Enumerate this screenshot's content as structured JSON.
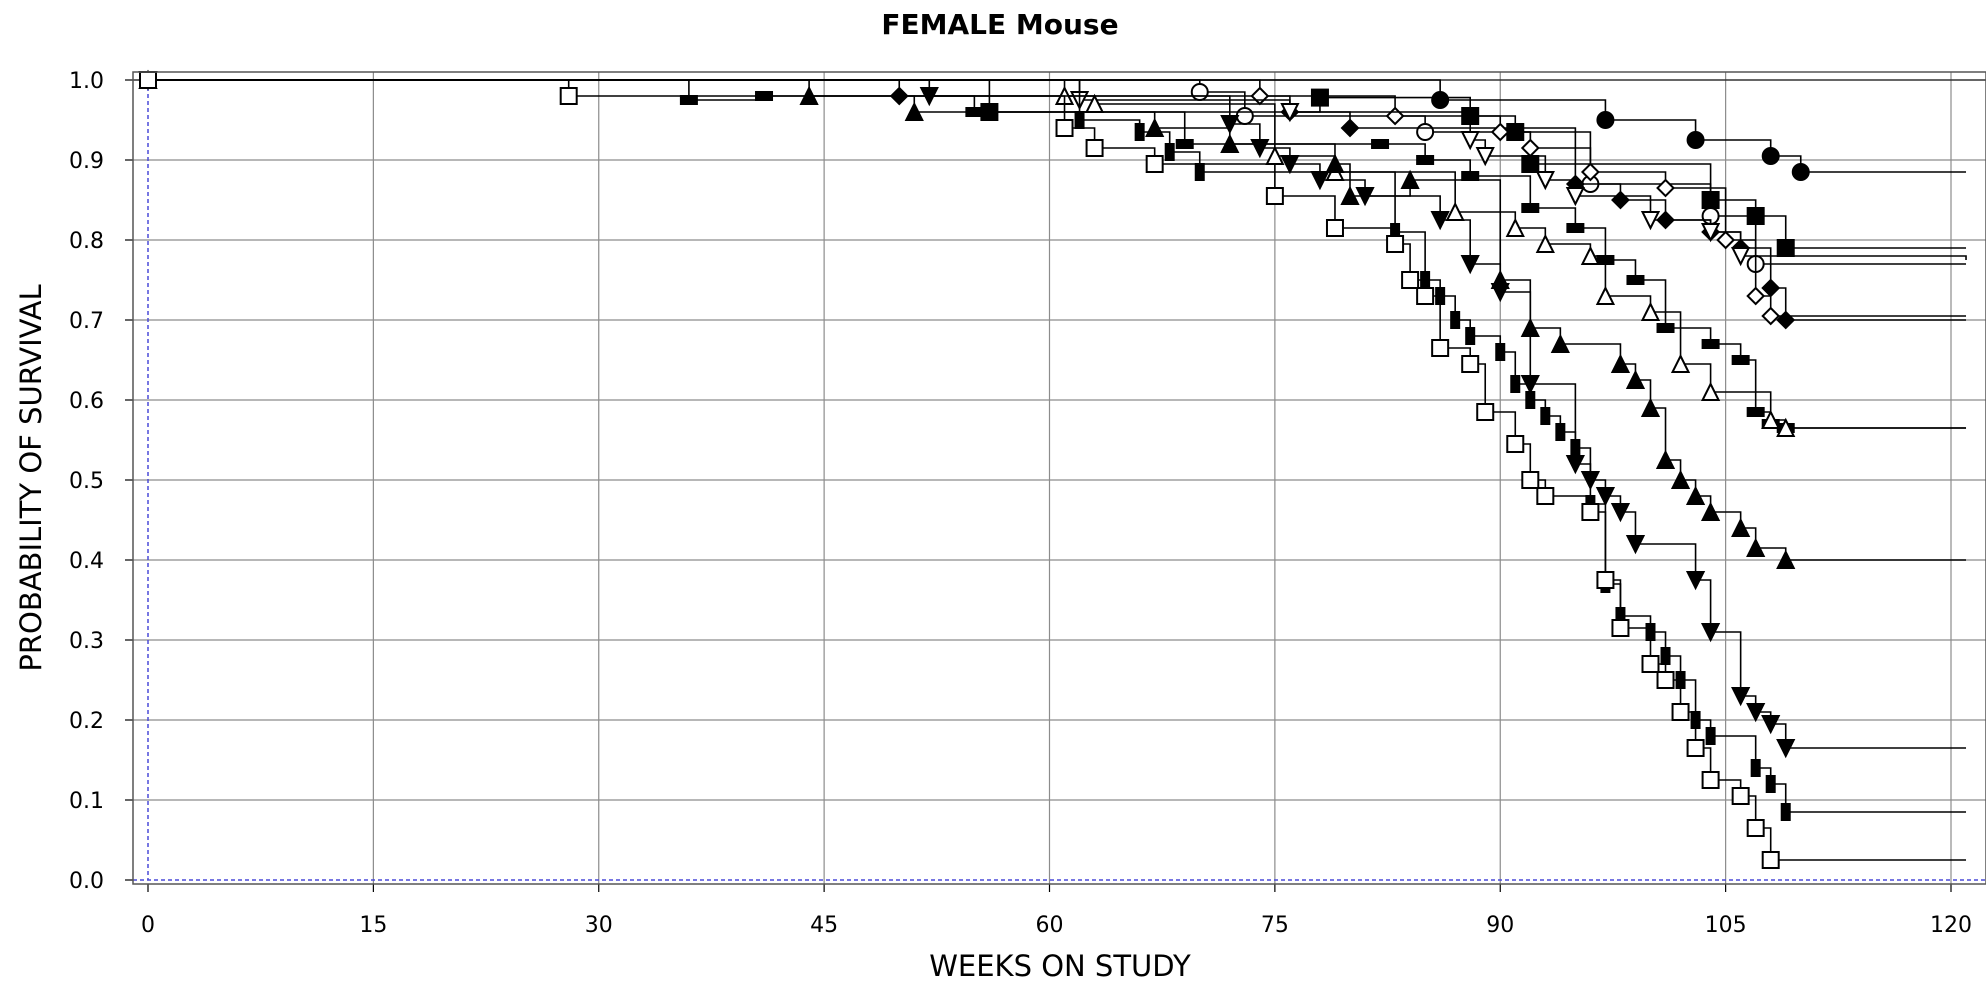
{
  "chart_data": {
    "type": "line",
    "title": "FEMALE Mouse",
    "xlabel": "WEEKS ON STUDY",
    "ylabel": "PROBABILITY OF SURVIVAL",
    "xlim": [
      -0.5,
      120
    ],
    "ylim": [
      0.0,
      1.0
    ],
    "xticks": [
      0,
      15,
      30,
      45,
      60,
      75,
      90,
      105,
      120
    ],
    "yticks": [
      0.0,
      0.1,
      0.2,
      0.3,
      0.4,
      0.5,
      0.6,
      0.7,
      0.8,
      0.9,
      1.0
    ],
    "ytick_labels": [
      "0.0",
      "0.1",
      "0.2",
      "0.3",
      "0.4",
      "0.5",
      "0.6",
      "0.7",
      "0.8",
      "0.9",
      "1.0"
    ],
    "grid": true,
    "step": true,
    "colors": {
      "line": "#000000",
      "grid": "#8c8c8c",
      "zero_line": "#4a4ad8"
    },
    "series": [
      {
        "marker": "circle-filled",
        "points": [
          [
            0,
            1.0
          ],
          [
            86,
            0.975
          ],
          [
            97,
            0.95
          ],
          [
            103,
            0.925
          ],
          [
            108,
            0.905
          ],
          [
            110,
            0.885
          ],
          [
            121,
            0.885
          ]
        ]
      },
      {
        "marker": "circle-open",
        "points": [
          [
            0,
            1.0
          ],
          [
            70,
            0.985
          ],
          [
            73,
            0.955
          ],
          [
            85,
            0.935
          ],
          [
            96,
            0.87
          ],
          [
            104,
            0.83
          ],
          [
            107,
            0.77
          ],
          [
            121,
            0.77
          ]
        ]
      },
      {
        "marker": "square-filled",
        "points": [
          [
            0,
            1.0
          ],
          [
            56,
            0.96
          ],
          [
            78,
            0.978
          ],
          [
            88,
            0.955
          ],
          [
            91,
            0.935
          ],
          [
            92,
            0.895
          ],
          [
            104,
            0.85
          ],
          [
            107,
            0.83
          ],
          [
            109,
            0.79
          ],
          [
            121,
            0.79
          ]
        ]
      },
      {
        "marker": "diamond-filled",
        "points": [
          [
            0,
            1.0
          ],
          [
            50,
            0.98
          ],
          [
            76,
            0.96
          ],
          [
            80,
            0.94
          ],
          [
            95,
            0.87
          ],
          [
            98,
            0.85
          ],
          [
            101,
            0.825
          ],
          [
            104,
            0.81
          ],
          [
            106,
            0.79
          ],
          [
            108,
            0.74
          ],
          [
            109,
            0.7
          ],
          [
            121,
            0.7
          ]
        ]
      },
      {
        "marker": "diamond-open",
        "points": [
          [
            0,
            1.0
          ],
          [
            74,
            0.98
          ],
          [
            83,
            0.955
          ],
          [
            90,
            0.935
          ],
          [
            92,
            0.915
          ],
          [
            96,
            0.885
          ],
          [
            101,
            0.865
          ],
          [
            105,
            0.8
          ],
          [
            107,
            0.73
          ],
          [
            108,
            0.705
          ],
          [
            121,
            0.705
          ]
        ]
      },
      {
        "marker": "triangle-down-open",
        "points": [
          [
            0,
            1.0
          ],
          [
            62,
            0.975
          ],
          [
            76,
            0.96
          ],
          [
            88,
            0.925
          ],
          [
            89,
            0.905
          ],
          [
            93,
            0.875
          ],
          [
            95,
            0.855
          ],
          [
            100,
            0.825
          ],
          [
            104,
            0.81
          ],
          [
            106,
            0.78
          ],
          [
            121,
            0.775
          ]
        ]
      },
      {
        "marker": "bar-filled",
        "points": [
          [
            0,
            1.0
          ],
          [
            36,
            0.975
          ],
          [
            41,
            0.98
          ],
          [
            55,
            0.96
          ],
          [
            69,
            0.92
          ],
          [
            82,
            0.92
          ],
          [
            85,
            0.9
          ],
          [
            88,
            0.88
          ],
          [
            92,
            0.84
          ],
          [
            95,
            0.815
          ],
          [
            97,
            0.775
          ],
          [
            99,
            0.75
          ],
          [
            101,
            0.69
          ],
          [
            104,
            0.67
          ],
          [
            106,
            0.65
          ],
          [
            107,
            0.585
          ],
          [
            108,
            0.57
          ],
          [
            109,
            0.565
          ],
          [
            121,
            0.565
          ]
        ]
      },
      {
        "marker": "triangle-up-open",
        "points": [
          [
            0,
            1.0
          ],
          [
            61,
            0.98
          ],
          [
            63,
            0.97
          ],
          [
            75,
            0.905
          ],
          [
            79,
            0.885
          ],
          [
            87,
            0.835
          ],
          [
            91,
            0.815
          ],
          [
            93,
            0.795
          ],
          [
            96,
            0.78
          ],
          [
            97,
            0.73
          ],
          [
            100,
            0.71
          ],
          [
            102,
            0.645
          ],
          [
            104,
            0.61
          ],
          [
            108,
            0.575
          ],
          [
            109,
            0.565
          ],
          [
            121,
            0.565
          ]
        ]
      },
      {
        "marker": "triangle-up-filled",
        "points": [
          [
            0,
            1.0
          ],
          [
            44,
            0.98
          ],
          [
            51,
            0.96
          ],
          [
            67,
            0.94
          ],
          [
            72,
            0.92
          ],
          [
            79,
            0.895
          ],
          [
            80,
            0.855
          ],
          [
            84,
            0.875
          ],
          [
            90,
            0.75
          ],
          [
            92,
            0.69
          ],
          [
            94,
            0.67
          ],
          [
            98,
            0.645
          ],
          [
            99,
            0.625
          ],
          [
            100,
            0.59
          ],
          [
            101,
            0.525
          ],
          [
            102,
            0.5
          ],
          [
            103,
            0.48
          ],
          [
            104,
            0.46
          ],
          [
            106,
            0.44
          ],
          [
            107,
            0.415
          ],
          [
            109,
            0.4
          ],
          [
            121,
            0.4
          ]
        ]
      },
      {
        "marker": "triangle-down-filled",
        "points": [
          [
            0,
            1.0
          ],
          [
            52,
            0.98
          ],
          [
            72,
            0.945
          ],
          [
            74,
            0.915
          ],
          [
            76,
            0.895
          ],
          [
            78,
            0.875
          ],
          [
            81,
            0.855
          ],
          [
            86,
            0.825
          ],
          [
            88,
            0.77
          ],
          [
            90,
            0.735
          ],
          [
            92,
            0.62
          ],
          [
            95,
            0.52
          ],
          [
            96,
            0.5
          ],
          [
            97,
            0.48
          ],
          [
            98,
            0.46
          ],
          [
            99,
            0.42
          ],
          [
            103,
            0.375
          ],
          [
            104,
            0.31
          ],
          [
            106,
            0.23
          ],
          [
            107,
            0.21
          ],
          [
            108,
            0.195
          ],
          [
            109,
            0.165
          ],
          [
            121,
            0.165
          ]
        ]
      },
      {
        "marker": "square-bar",
        "points": [
          [
            0,
            1.0
          ],
          [
            62,
            0.95
          ],
          [
            66,
            0.935
          ],
          [
            68,
            0.91
          ],
          [
            70,
            0.885
          ],
          [
            83,
            0.81
          ],
          [
            85,
            0.75
          ],
          [
            86,
            0.73
          ],
          [
            87,
            0.7
          ],
          [
            88,
            0.68
          ],
          [
            90,
            0.66
          ],
          [
            91,
            0.62
          ],
          [
            92,
            0.6
          ],
          [
            93,
            0.58
          ],
          [
            94,
            0.56
          ],
          [
            95,
            0.54
          ],
          [
            96,
            0.47
          ],
          [
            97,
            0.37
          ],
          [
            98,
            0.33
          ],
          [
            100,
            0.31
          ],
          [
            101,
            0.28
          ],
          [
            102,
            0.25
          ],
          [
            103,
            0.2
          ],
          [
            104,
            0.18
          ],
          [
            107,
            0.14
          ],
          [
            108,
            0.12
          ],
          [
            109,
            0.085
          ],
          [
            121,
            0.085
          ]
        ]
      },
      {
        "marker": "square-open",
        "points": [
          [
            0,
            1.0
          ],
          [
            28,
            0.98
          ],
          [
            61,
            0.94
          ],
          [
            63,
            0.915
          ],
          [
            67,
            0.895
          ],
          [
            75,
            0.855
          ],
          [
            79,
            0.815
          ],
          [
            83,
            0.795
          ],
          [
            84,
            0.75
          ],
          [
            85,
            0.73
          ],
          [
            86,
            0.665
          ],
          [
            88,
            0.645
          ],
          [
            89,
            0.585
          ],
          [
            91,
            0.545
          ],
          [
            92,
            0.5
          ],
          [
            93,
            0.48
          ],
          [
            96,
            0.46
          ],
          [
            97,
            0.375
          ],
          [
            98,
            0.315
          ],
          [
            100,
            0.27
          ],
          [
            101,
            0.25
          ],
          [
            102,
            0.21
          ],
          [
            103,
            0.165
          ],
          [
            104,
            0.125
          ],
          [
            106,
            0.105
          ],
          [
            107,
            0.065
          ],
          [
            108,
            0.025
          ],
          [
            121,
            0.025
          ]
        ]
      }
    ]
  }
}
